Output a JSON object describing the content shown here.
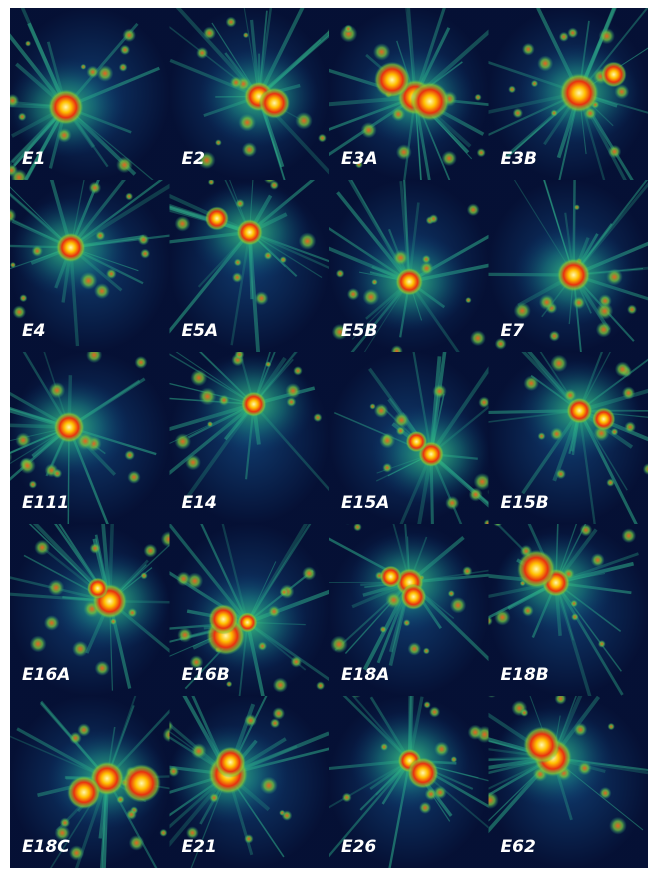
{
  "panels": [
    {
      "label": "E1"
    },
    {
      "label": "E2"
    },
    {
      "label": "E3A"
    },
    {
      "label": "E3B"
    },
    {
      "label": "E4"
    },
    {
      "label": "E5A"
    },
    {
      "label": "E5B"
    },
    {
      "label": "E7"
    },
    {
      "label": "E111"
    },
    {
      "label": "E14"
    },
    {
      "label": "E15A"
    },
    {
      "label": "E15B"
    },
    {
      "label": "E16A"
    },
    {
      "label": "E16B"
    },
    {
      "label": "E18A"
    },
    {
      "label": "E18B"
    },
    {
      "label": "E18C"
    },
    {
      "label": "E21"
    },
    {
      "label": "E26"
    },
    {
      "label": "E62"
    }
  ]
}
